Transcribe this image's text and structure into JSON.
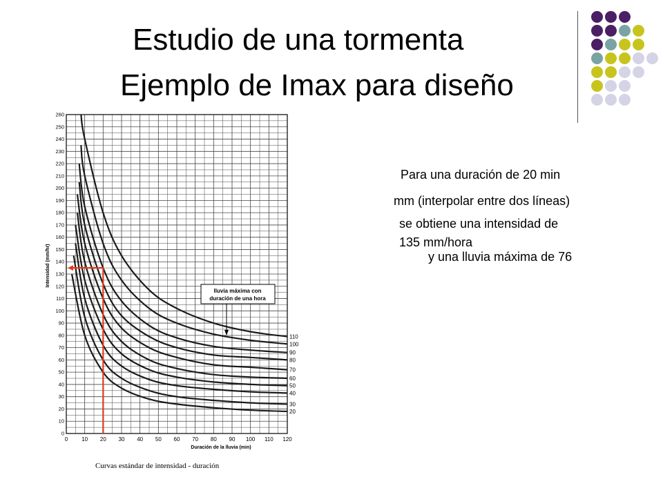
{
  "slide": {
    "title_line1": "Estudio de una tormenta",
    "title_line2": "Ejemplo de Imax para diseño",
    "note_duration": "Para una duración de 20 min",
    "note_interpolate": "mm (interpolar entre dos líneas)",
    "note_intensity": "se obtiene una intensidad de",
    "note_value": "135 mm/hora",
    "note_rain": "y una lluvia máxima de 76"
  },
  "decor": {
    "dot_colors": {
      "purple": "#4b1f63",
      "teal": "#7aa3a3",
      "olive": "#c8c41e",
      "lavender": "#d4d4e6"
    },
    "dot_rows": [
      [
        "purple",
        "purple",
        "purple"
      ],
      [
        "purple",
        "purple",
        "teal",
        "olive"
      ],
      [
        "purple",
        "teal",
        "olive",
        "olive"
      ],
      [
        "teal",
        "olive",
        "olive",
        "lavender",
        "lavender"
      ],
      [
        "olive",
        "olive",
        "lavender",
        "lavender"
      ],
      [
        "olive",
        "lavender",
        "lavender"
      ],
      [
        "lavender",
        "lavender",
        "lavender"
      ]
    ]
  },
  "chart_data": {
    "type": "line",
    "ylabel": "Intensidad (mm/hr)",
    "xlabel": "Duración de la lluvia (min)",
    "caption": "Curvas estándar de intensidad - duración",
    "xlim": [
      0,
      120
    ],
    "ylim": [
      0,
      260
    ],
    "x_ticks": [
      0,
      10,
      20,
      30,
      40,
      50,
      60,
      70,
      80,
      90,
      100,
      110,
      120
    ],
    "y_ticks": [
      0,
      10,
      20,
      30,
      40,
      50,
      60,
      70,
      80,
      90,
      100,
      110,
      120,
      130,
      140,
      150,
      160,
      170,
      180,
      190,
      200,
      210,
      220,
      230,
      240,
      250,
      260
    ],
    "grid": true,
    "series": [
      {
        "name": "20",
        "x": [
          3,
          10,
          20,
          30,
          45,
          60,
          80,
          100,
          120
        ],
        "y": [
          130,
          80,
          50,
          37,
          28,
          24,
          21,
          19,
          18
        ]
      },
      {
        "name": "30",
        "x": [
          4,
          10,
          20,
          30,
          45,
          60,
          80,
          100,
          120
        ],
        "y": [
          145,
          95,
          60,
          45,
          35,
          30,
          27,
          25,
          24
        ]
      },
      {
        "name": "40",
        "x": [
          5,
          10,
          20,
          30,
          45,
          60,
          80,
          100,
          120
        ],
        "y": [
          155,
          110,
          72,
          55,
          44,
          39,
          36,
          34,
          33
        ]
      },
      {
        "name": "50",
        "x": [
          5,
          10,
          20,
          30,
          45,
          60,
          80,
          100,
          120
        ],
        "y": [
          170,
          125,
          85,
          65,
          52,
          46,
          42,
          40,
          39
        ]
      },
      {
        "name": "60",
        "x": [
          6,
          10,
          20,
          30,
          45,
          60,
          80,
          100,
          120
        ],
        "y": [
          180,
          140,
          97,
          75,
          60,
          53,
          48,
          46,
          45
        ]
      },
      {
        "name": "70",
        "x": [
          6,
          10,
          20,
          30,
          45,
          60,
          80,
          100,
          120
        ],
        "y": [
          195,
          155,
          110,
          86,
          70,
          62,
          56,
          54,
          52
        ]
      },
      {
        "name": "80",
        "x": [
          7,
          10,
          20,
          30,
          45,
          60,
          80,
          100,
          120
        ],
        "y": [
          205,
          170,
          122,
          96,
          79,
          70,
          64,
          62,
          60
        ]
      },
      {
        "name": "90",
        "x": [
          7,
          10,
          20,
          30,
          45,
          60,
          80,
          100,
          120
        ],
        "y": [
          220,
          185,
          135,
          108,
          88,
          78,
          71,
          68,
          66
        ]
      },
      {
        "name": "100",
        "x": [
          8,
          10,
          20,
          30,
          45,
          60,
          80,
          100,
          120
        ],
        "y": [
          235,
          210,
          155,
          125,
          102,
          90,
          81,
          76,
          73
        ]
      },
      {
        "name": "110",
        "x": [
          8,
          10,
          20,
          30,
          45,
          60,
          80,
          100,
          120
        ],
        "y": [
          260,
          240,
          180,
          145,
          117,
          102,
          90,
          83,
          79
        ]
      }
    ],
    "annotation": {
      "text_line1": "lluvia máxima con",
      "text_line2": "duración de una hora",
      "pointer_x": 87,
      "pointer_y": 80
    },
    "reading": {
      "x": 20,
      "y": 135
    }
  }
}
